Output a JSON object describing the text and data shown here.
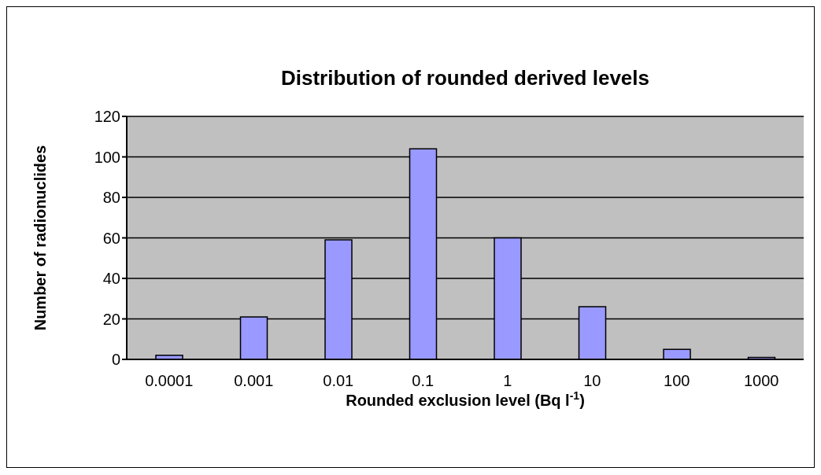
{
  "chart_data": {
    "type": "bar",
    "title": "Distribution of rounded derived levels",
    "xlabel": "Rounded exclusion  level (Bq l$^{-1}$)",
    "ylabel": "Number of radionuclides",
    "categories": [
      "0.0001",
      "0.001",
      "0.01",
      "0.1",
      "1",
      "10",
      "100",
      "1000"
    ],
    "values": [
      2,
      21,
      59,
      104,
      60,
      26,
      5,
      1
    ],
    "color": "#9999ff",
    "ylim": [
      0,
      120
    ],
    "yticks": [
      0,
      20,
      40,
      60,
      80,
      100,
      120
    ],
    "grid": "y"
  }
}
